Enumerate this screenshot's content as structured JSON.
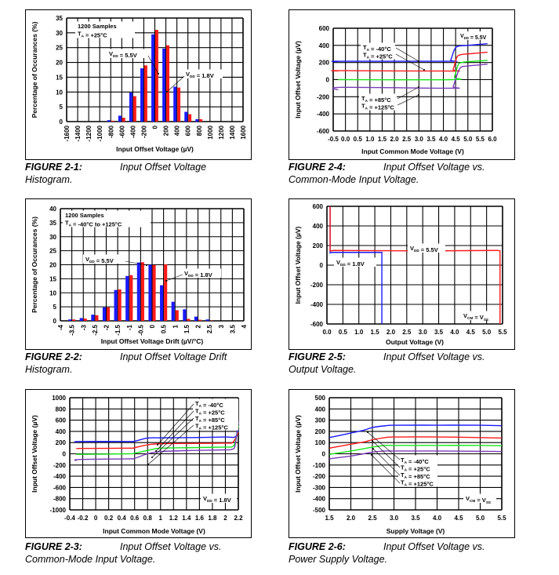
{
  "colors": {
    "blue": "#1a1aff",
    "red": "#ff1a1a",
    "green": "#19e619",
    "purple": "#7a3cb8",
    "grid": "#000000"
  },
  "captions": [
    {
      "num": "FIGURE 2-1:",
      "title": "Input Offset Voltage",
      "cont": "Histogram."
    },
    {
      "num": "FIGURE 2-2:",
      "title": "Input Offset Voltage Drift",
      "cont": "Histogram."
    },
    {
      "num": "FIGURE 2-3:",
      "title": "Input Offset Voltage vs.",
      "cont": "Common-Mode Input Voltage."
    },
    {
      "num": "FIGURE 2-4:",
      "title": "Input Offset Voltage vs.",
      "cont": "Common-Mode Input Voltage."
    },
    {
      "num": "FIGURE 2-5:",
      "title": "Input Offset Voltage vs.",
      "cont": "Output Voltage."
    },
    {
      "num": "FIGURE 2-6:",
      "title": "Input Offset Voltage vs.",
      "cont": "Power Supply Voltage."
    }
  ],
  "chart_data": [
    {
      "id": "fig-2-1",
      "type": "bar",
      "title": "",
      "xlabel": "Input Offset Voltage (µV)",
      "ylabel": "Percentage of Occurances (%)",
      "categories": [
        "-1600",
        "-1400",
        "-1200",
        "-1000",
        "-800",
        "-600",
        "-400",
        "-200",
        "0",
        "200",
        "400",
        "600",
        "800",
        "1000",
        "1200",
        "1400",
        "1600"
      ],
      "ylim": [
        0,
        35
      ],
      "yticks": [
        "0",
        "5",
        "10",
        "15",
        "20",
        "25",
        "30",
        "35"
      ],
      "series": [
        {
          "name": "VDD = 5.5V",
          "color": "blue",
          "values": [
            0,
            0,
            0,
            0,
            0.5,
            2,
            9.8,
            18,
            29.5,
            24.7,
            11.8,
            3.3,
            0.8,
            0,
            0,
            0,
            0
          ]
        },
        {
          "name": "VDD = 1.8V",
          "color": "red",
          "values": [
            0,
            0,
            0,
            0,
            0.3,
            1.3,
            8.6,
            19,
            31,
            25.8,
            11.5,
            2.5,
            0.8,
            0,
            0,
            0,
            0
          ]
        }
      ],
      "annotations": [
        {
          "lines": [
            "1200 Samples",
            "TA = +25°C"
          ]
        },
        {
          "text": "VDD = 5.5V"
        },
        {
          "text": "VDD = 1.8V"
        }
      ]
    },
    {
      "id": "fig-2-2",
      "type": "bar",
      "title": "",
      "xlabel": "Input Offset Voltage Drift (µV/°C)",
      "ylabel": "Percentage of Occurances (%)",
      "categories": [
        "-4",
        "-3.5",
        "-3",
        "-2.5",
        "-2",
        "-1.5",
        "-1",
        "-0.5",
        "0",
        "0.5",
        "1",
        "1.5",
        "2",
        "2.5",
        "3",
        "3.5",
        "4"
      ],
      "ylim": [
        0,
        40
      ],
      "yticks": [
        "0",
        "5",
        "10",
        "15",
        "20",
        "25",
        "30",
        "35",
        "40"
      ],
      "series": [
        {
          "name": "VDD = 5.5V",
          "color": "blue",
          "values": [
            0,
            0.5,
            1,
            2.2,
            4.8,
            11,
            16,
            20.8,
            20,
            12.7,
            6.8,
            4.1,
            1.5,
            0.5,
            0,
            0,
            0
          ]
        },
        {
          "name": "VDD = 1.8V",
          "color": "red",
          "values": [
            0,
            0.5,
            0.8,
            2,
            4.8,
            11.2,
            16.3,
            20.9,
            19.9,
            20.1,
            3.8,
            0.7,
            0.4,
            0.1,
            0,
            0,
            0
          ]
        }
      ],
      "annotations": [
        {
          "lines": [
            "1200 Samples",
            "TA = -40°C to +125°C"
          ]
        },
        {
          "text": "VDD = 5.5V"
        },
        {
          "text": "VDD = 1.8V"
        }
      ]
    },
    {
      "id": "fig-2-3",
      "type": "line",
      "title": "",
      "xlabel": "Input Common Mode Voltage (V)",
      "ylabel": "Input Offset Voltage (µV)",
      "xlim": [
        -0.4,
        2.2
      ],
      "ylim": [
        -1000,
        1000
      ],
      "xticks": [
        "-0.4",
        "-0.2",
        "0",
        "0.2",
        "0.4",
        "0.6",
        "0.8",
        "1",
        "1.2",
        "1.4",
        "1.6",
        "1.8",
        "2",
        "2.2"
      ],
      "yticks": [
        "-1000",
        "-800",
        "-600",
        "-400",
        "-200",
        "0",
        "200",
        "400",
        "600",
        "800",
        "1000"
      ],
      "series": [
        {
          "name": "TA = -40°C",
          "color": "blue",
          "x": [
            -0.3,
            -0.25,
            0.5,
            0.6,
            0.8,
            1.0,
            1.5,
            2.0,
            2.15,
            2.2
          ],
          "y": [
            210,
            220,
            220,
            225,
            280,
            285,
            290,
            300,
            300,
            420
          ]
        },
        {
          "name": "TA = +25°C",
          "color": "red",
          "x": [
            -0.3,
            0.5,
            0.6,
            0.8,
            1.0,
            1.5,
            2.0,
            2.1,
            2.15,
            2.2
          ],
          "y": [
            95,
            100,
            110,
            160,
            180,
            185,
            190,
            195,
            260,
            380
          ]
        },
        {
          "name": "TA = +85°C",
          "color": "green",
          "x": [
            -0.3,
            0.5,
            0.6,
            0.8,
            1.0,
            1.5,
            2.0,
            2.1,
            2.15,
            2.2
          ],
          "y": [
            -10,
            0,
            10,
            60,
            100,
            110,
            120,
            125,
            200,
            500
          ]
        },
        {
          "name": "TA = +125°C",
          "color": "purple",
          "x": [
            -0.3,
            -0.25,
            0.5,
            0.6,
            0.8,
            1.0,
            1.5,
            2.0,
            2.1,
            2.15,
            2.2
          ],
          "y": [
            -125,
            -100,
            -90,
            -80,
            0,
            40,
            60,
            70,
            80,
            150,
            580
          ]
        }
      ],
      "annotations": [
        {
          "lines": [
            "TA = -40°C",
            "TA = +25°C",
            "TA = +85°C",
            "TA = +125°C"
          ]
        },
        {
          "text": "VDD = 1.8V"
        }
      ]
    },
    {
      "id": "fig-2-4",
      "type": "line",
      "title": "",
      "xlabel": "Input Common Mode Voltage (V)",
      "ylabel": "Input Offset Voltage (µV)",
      "xlim": [
        -0.5,
        6.0
      ],
      "ylim": [
        -600,
        600
      ],
      "xticks": [
        "-0.5",
        "0.0",
        "0.5",
        "1.0",
        "1.5",
        "2.0",
        "2.5",
        "3.0",
        "3.5",
        "4.0",
        "4.5",
        "5.0",
        "5.5",
        "6.0"
      ],
      "yticks": [
        "-600",
        "-400",
        "-200",
        "0",
        "200",
        "400",
        "600"
      ],
      "series": [
        {
          "name": "TA = -40°C",
          "color": "blue",
          "x": [
            -0.3,
            -0.2,
            4.2,
            4.3,
            4.45,
            4.6,
            5.0,
            5.8
          ],
          "y": [
            210,
            215,
            215,
            230,
            350,
            390,
            400,
            420
          ]
        },
        {
          "name": "TA = +25°C",
          "color": "red",
          "x": [
            -0.3,
            -0.2,
            4.3,
            4.4,
            4.55,
            4.7,
            5.0,
            5.8
          ],
          "y": [
            100,
            105,
            100,
            120,
            260,
            290,
            300,
            320
          ]
        },
        {
          "name": "TA = +85°C",
          "color": "green",
          "x": [
            -0.3,
            4.35,
            4.45,
            4.6,
            4.75,
            5.0,
            5.8
          ],
          "y": [
            0,
            0,
            30,
            170,
            200,
            210,
            225
          ]
        },
        {
          "name": "TA = +125°C",
          "color": "purple",
          "x": [
            -0.3,
            -0.15,
            4.3,
            4.4,
            4.55,
            4.7,
            5.0,
            5.8
          ],
          "y": [
            -120,
            -90,
            -100,
            -80,
            50,
            140,
            160,
            180
          ]
        }
      ],
      "annotations": [
        {
          "text": "VDD = 5.5V"
        },
        {
          "lines": [
            "TA = -40°C",
            "TA = +25°C"
          ]
        },
        {
          "lines": [
            "TA = +85°C",
            "TA = +125°C"
          ]
        }
      ]
    },
    {
      "id": "fig-2-5",
      "type": "line",
      "title": "",
      "xlabel": "Output Voltage (V)",
      "ylabel": "Input Offset Voltage (µV)",
      "xlim": [
        0.0,
        5.5
      ],
      "ylim": [
        -600,
        600
      ],
      "xticks": [
        "0.0",
        "0.5",
        "1.0",
        "1.5",
        "2.0",
        "2.5",
        "3.0",
        "3.5",
        "4.0",
        "4.5",
        "5.0",
        "5.5"
      ],
      "yticks": [
        "-600",
        "-400",
        "-200",
        "0",
        "200",
        "400",
        "600"
      ],
      "series": [
        {
          "name": "VDD = 1.8V",
          "color": "blue",
          "x": [
            0.1,
            0.1,
            0.15,
            1.65,
            1.72,
            1.72
          ],
          "y": [
            600,
            125,
            130,
            130,
            130,
            -600
          ]
        },
        {
          "name": "VDD = 5.5V",
          "color": "red",
          "x": [
            0.1,
            0.1,
            0.2,
            3.0,
            5.35,
            5.42,
            5.42
          ],
          "y": [
            600,
            145,
            150,
            145,
            150,
            145,
            -600
          ]
        }
      ],
      "annotations": [
        {
          "text": "VDD = 5.5V"
        },
        {
          "text": "VDD = 1.8V"
        },
        {
          "text": "VCM = VSS"
        }
      ]
    },
    {
      "id": "fig-2-6",
      "type": "line",
      "title": "",
      "xlabel": "Supply Voltage (V)",
      "ylabel": "Input Offset Voltage (µV)",
      "xlim": [
        1.5,
        5.5
      ],
      "ylim": [
        -500,
        500
      ],
      "xticks": [
        "1.5",
        "2.0",
        "2.5",
        "3.0",
        "3.5",
        "4.0",
        "4.5",
        "5.0",
        "5.5"
      ],
      "yticks": [
        "-500",
        "-400",
        "-300",
        "-200",
        "-100",
        "0",
        "100",
        "200",
        "300",
        "400",
        "500"
      ],
      "series": [
        {
          "name": "TA = -40°C",
          "color": "blue",
          "x": [
            1.5,
            2.0,
            2.3,
            2.5,
            2.8,
            3.0,
            4.0,
            5.0,
            5.5
          ],
          "y": [
            145,
            185,
            210,
            235,
            250,
            255,
            255,
            255,
            250
          ]
        },
        {
          "name": "TA = +25°C",
          "color": "red",
          "x": [
            1.5,
            2.0,
            2.3,
            2.5,
            2.8,
            3.0,
            4.0,
            5.0,
            5.5
          ],
          "y": [
            50,
            85,
            105,
            125,
            145,
            150,
            150,
            145,
            140
          ]
        },
        {
          "name": "TA = +85°C",
          "color": "green",
          "x": [
            1.5,
            2.0,
            2.3,
            2.5,
            2.8,
            3.0,
            4.0,
            5.0,
            5.5
          ],
          "y": [
            -5,
            25,
            45,
            60,
            75,
            75,
            75,
            75,
            72
          ]
        },
        {
          "name": "TA = +125°C",
          "color": "purple",
          "x": [
            1.5,
            2.0,
            2.3,
            2.5,
            2.8,
            3.0,
            4.0,
            5.0,
            5.5
          ],
          "y": [
            -45,
            -20,
            0,
            15,
            25,
            25,
            25,
            22,
            20
          ]
        }
      ],
      "annotations": [
        {
          "lines": [
            "TA = -40°C",
            "TA = +25°C",
            "TA = +85°C",
            "TA = +125°C"
          ]
        },
        {
          "text": "VCM = VSS"
        }
      ]
    }
  ]
}
